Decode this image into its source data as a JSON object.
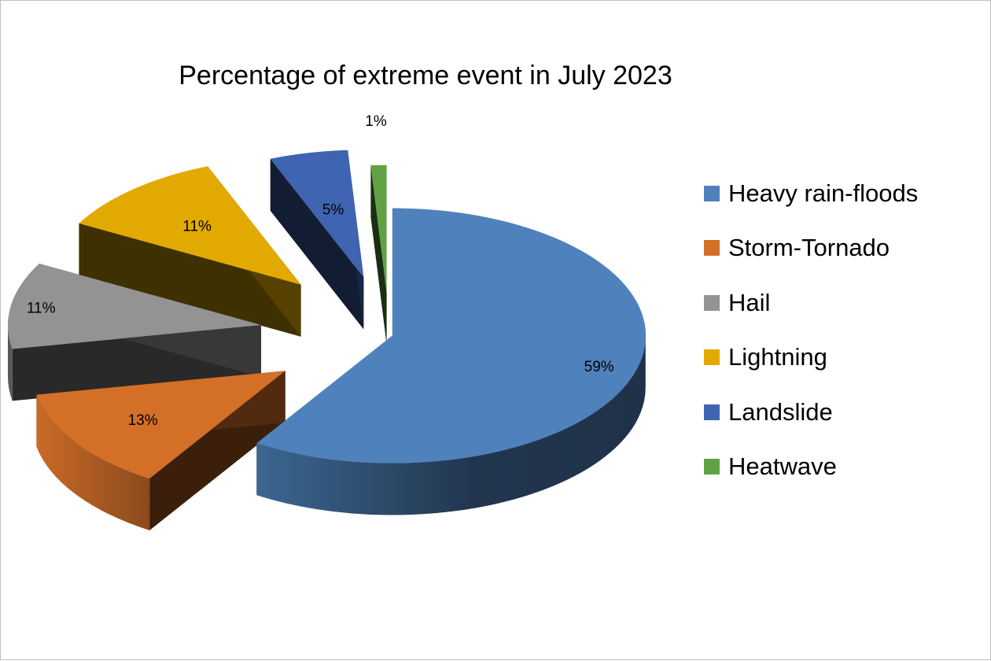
{
  "chart_data": {
    "type": "pie",
    "title": "Percentage of extreme event in July 2023",
    "categories": [
      "Heavy rain-floods",
      "Storm-Tornado",
      "Hail",
      "Lightning",
      "Landslide",
      "Heatwave"
    ],
    "values": [
      59,
      13,
      11,
      11,
      5,
      1
    ],
    "data_labels": [
      "59%",
      "13%",
      "11%",
      "11%",
      "5%",
      "1%"
    ],
    "colors": [
      "#4f81bd",
      "#d46f27",
      "#939393",
      "#e2aa00",
      "#3f64b1",
      "#60a243"
    ],
    "style": "3d-exploded",
    "legend_position": "right"
  }
}
